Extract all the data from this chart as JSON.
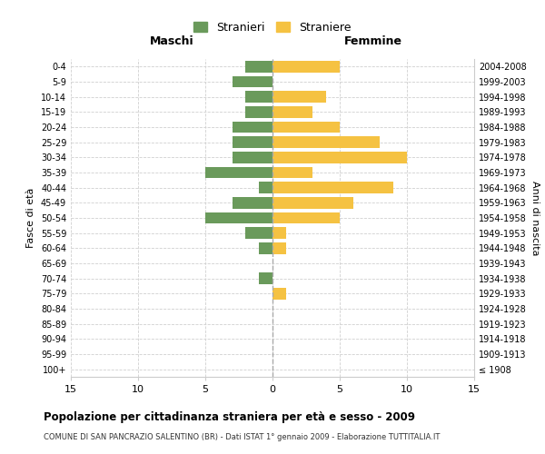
{
  "age_groups": [
    "100+",
    "95-99",
    "90-94",
    "85-89",
    "80-84",
    "75-79",
    "70-74",
    "65-69",
    "60-64",
    "55-59",
    "50-54",
    "45-49",
    "40-44",
    "35-39",
    "30-34",
    "25-29",
    "20-24",
    "15-19",
    "10-14",
    "5-9",
    "0-4"
  ],
  "birth_years": [
    "≤ 1908",
    "1909-1913",
    "1914-1918",
    "1919-1923",
    "1924-1928",
    "1929-1933",
    "1934-1938",
    "1939-1943",
    "1944-1948",
    "1949-1953",
    "1954-1958",
    "1959-1963",
    "1964-1968",
    "1969-1973",
    "1974-1978",
    "1979-1983",
    "1984-1988",
    "1989-1993",
    "1994-1998",
    "1999-2003",
    "2004-2008"
  ],
  "males": [
    0,
    0,
    0,
    0,
    0,
    0,
    1,
    0,
    1,
    2,
    5,
    3,
    1,
    5,
    3,
    3,
    3,
    2,
    2,
    3,
    2
  ],
  "females": [
    0,
    0,
    0,
    0,
    0,
    1,
    0,
    0,
    1,
    1,
    5,
    6,
    9,
    3,
    10,
    8,
    5,
    3,
    4,
    0,
    5
  ],
  "male_color": "#6a9a5b",
  "female_color": "#f5c242",
  "title": "Popolazione per cittadinanza straniera per età e sesso - 2009",
  "subtitle": "COMUNE DI SAN PANCRAZIO SALENTINO (BR) - Dati ISTAT 1° gennaio 2009 - Elaborazione TUTTITALIA.IT",
  "ylabel_left": "Fasce di età",
  "ylabel_right": "Anni di nascita",
  "xlabel_left": "Maschi",
  "xlabel_right": "Femmine",
  "legend_stranieri": "Stranieri",
  "legend_straniere": "Straniere",
  "xlim": 15,
  "background_color": "#ffffff",
  "grid_color": "#d0d0d0"
}
